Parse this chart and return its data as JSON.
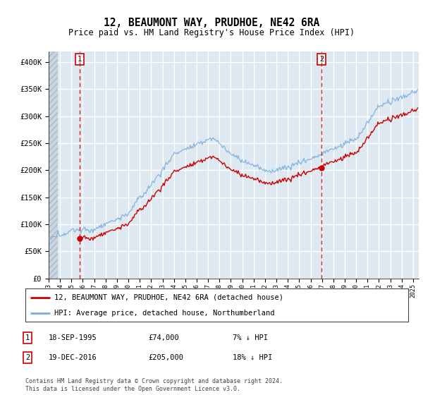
{
  "title": "12, BEAUMONT WAY, PRUDHOE, NE42 6RA",
  "subtitle": "Price paid vs. HM Land Registry's House Price Index (HPI)",
  "ylim": [
    0,
    420000
  ],
  "yticks": [
    0,
    50000,
    100000,
    150000,
    200000,
    250000,
    300000,
    350000,
    400000
  ],
  "ytick_labels": [
    "£0",
    "£50K",
    "£100K",
    "£150K",
    "£200K",
    "£250K",
    "£300K",
    "£350K",
    "£400K"
  ],
  "hpi_color": "#7aaedd",
  "price_color": "#cc0000",
  "marker1_date": 1995.72,
  "marker1_price": 74000,
  "marker2_date": 2016.97,
  "marker2_price": 205000,
  "annotation1": "1",
  "annotation2": "2",
  "legend_label1": "12, BEAUMONT WAY, PRUDHOE, NE42 6RA (detached house)",
  "legend_label2": "HPI: Average price, detached house, Northumberland",
  "note1_date": "18-SEP-1995",
  "note1_price": "£74,000",
  "note1_hpi": "7% ↓ HPI",
  "note2_date": "19-DEC-2016",
  "note2_price": "£205,000",
  "note2_hpi": "18% ↓ HPI",
  "footer": "Contains HM Land Registry data © Crown copyright and database right 2024.\nThis data is licensed under the Open Government Licence v3.0.",
  "background_color": "#dde8f0",
  "grid_color": "#ffffff",
  "hatch_region_end": 1993.8,
  "xlim_start": 1993.0,
  "xlim_end": 2025.5
}
